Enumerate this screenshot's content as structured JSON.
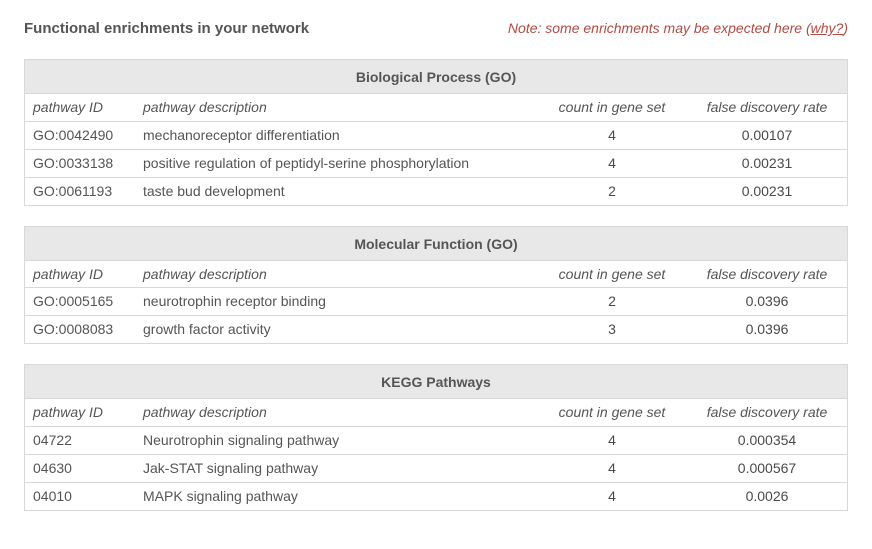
{
  "header": {
    "title": "Functional enrichments in your network",
    "note_prefix": "Note: some enrichments may be expected here ",
    "note_link_open": "(",
    "note_link_text": "why?",
    "note_link_close": ")"
  },
  "columns": {
    "id": "pathway ID",
    "desc": "pathway description",
    "count": "count in gene set",
    "fdr": "false discovery rate"
  },
  "sections": [
    {
      "title": "Biological Process (GO)",
      "rows": [
        {
          "id": "GO:0042490",
          "desc": "mechanoreceptor differentiation",
          "count": "4",
          "fdr": "0.00107"
        },
        {
          "id": "GO:0033138",
          "desc": "positive regulation of peptidyl-serine phosphorylation",
          "count": "4",
          "fdr": "0.00231"
        },
        {
          "id": "GO:0061193",
          "desc": "taste bud development",
          "count": "2",
          "fdr": "0.00231"
        }
      ]
    },
    {
      "title": "Molecular Function (GO)",
      "rows": [
        {
          "id": "GO:0005165",
          "desc": "neurotrophin receptor binding",
          "count": "2",
          "fdr": "0.0396"
        },
        {
          "id": "GO:0008083",
          "desc": "growth factor activity",
          "count": "3",
          "fdr": "0.0396"
        }
      ]
    },
    {
      "title": "KEGG Pathways",
      "rows": [
        {
          "id": "04722",
          "desc": "Neurotrophin signaling pathway",
          "count": "4",
          "fdr": "0.000354"
        },
        {
          "id": "04630",
          "desc": "Jak-STAT signaling pathway",
          "count": "4",
          "fdr": "0.000567"
        },
        {
          "id": "04010",
          "desc": "MAPK signaling pathway",
          "count": "4",
          "fdr": "0.0026"
        }
      ]
    }
  ]
}
